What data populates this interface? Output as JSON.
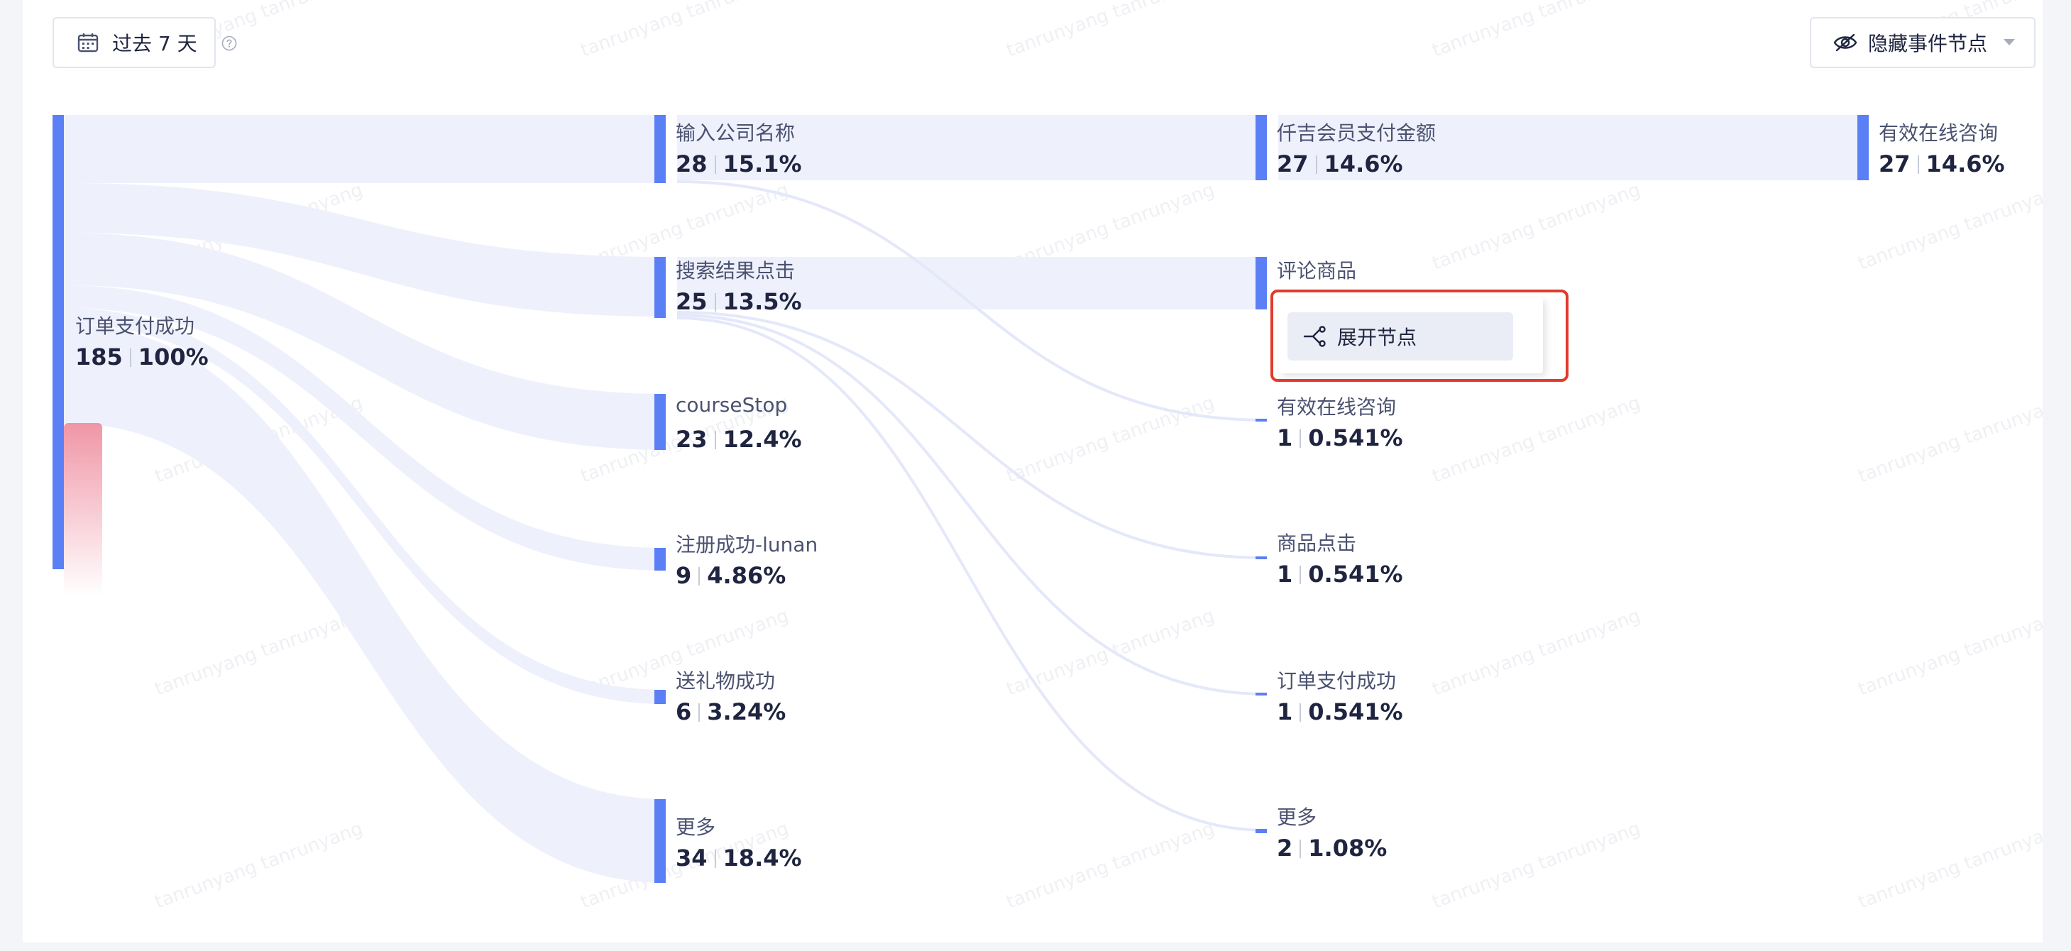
{
  "toolbar": {
    "date_range_label": "过去 7 天",
    "hide_event_nodes_label": "隐藏事件节点"
  },
  "context_menu": {
    "expand_label": "展开节点"
  },
  "watermark": "tanrunyang tanrunyang",
  "colors": {
    "accent": "#5b7ff5",
    "flow": "#eef1fc",
    "highlight": "#e23a2c",
    "loss": "#ee8a9c"
  },
  "sankey": {
    "columns": [
      [
        {
          "name": "订单支付成功",
          "count": "185",
          "pct": "100%"
        }
      ],
      [
        {
          "name": "输入公司名称",
          "count": "28",
          "pct": "15.1%"
        },
        {
          "name": "搜索结果点击",
          "count": "25",
          "pct": "13.5%"
        },
        {
          "name": "courseStop",
          "count": "23",
          "pct": "12.4%"
        },
        {
          "name": "注册成功-lunan",
          "count": "9",
          "pct": "4.86%"
        },
        {
          "name": "送礼物成功",
          "count": "6",
          "pct": "3.24%"
        },
        {
          "name": "更多",
          "count": "34",
          "pct": "18.4%"
        }
      ],
      [
        {
          "name": "仟吉会员支付金额",
          "count": "27",
          "pct": "14.6%"
        },
        {
          "name": "评论商品",
          "count": "",
          "pct": ""
        },
        {
          "name": "有效在线咨询",
          "count": "1",
          "pct": "0.541%"
        },
        {
          "name": "商品点击",
          "count": "1",
          "pct": "0.541%"
        },
        {
          "name": "订单支付成功",
          "count": "1",
          "pct": "0.541%"
        },
        {
          "name": "更多",
          "count": "2",
          "pct": "1.08%"
        }
      ],
      [
        {
          "name": "有效在线咨询",
          "count": "27",
          "pct": "14.6%"
        }
      ]
    ]
  }
}
